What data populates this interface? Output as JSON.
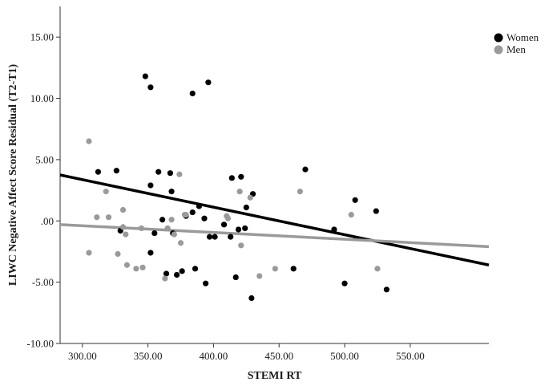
{
  "chart_data": {
    "type": "scatter",
    "xlabel": "STEMI RT",
    "ylabel": "LIWC Negative Affect Score Residual (T2-T1)",
    "xlim": [
      283,
      610
    ],
    "ylim": [
      -10,
      17.5
    ],
    "x_ticks": [
      300,
      350,
      400,
      450,
      500,
      550
    ],
    "x_tick_labels": [
      "300.00",
      "350.00",
      "400.00",
      "450.00",
      "500.00",
      "550.00"
    ],
    "y_ticks": [
      15,
      10,
      5,
      0,
      -5,
      -10
    ],
    "y_tick_labels": [
      "15.00",
      "10.00",
      "5.00",
      ".00",
      "-5.00",
      "-10.00"
    ],
    "grid": false,
    "legend_position": "top-right",
    "series": [
      {
        "name": "Women",
        "color": "#000000",
        "points": [
          [
            312,
            4.0
          ],
          [
            326,
            4.1
          ],
          [
            329,
            -0.8
          ],
          [
            348,
            11.8
          ],
          [
            352,
            10.9
          ],
          [
            352,
            2.9
          ],
          [
            352,
            -2.6
          ],
          [
            355,
            -1.0
          ],
          [
            358,
            4.0
          ],
          [
            361,
            0.1
          ],
          [
            364,
            -4.3
          ],
          [
            367,
            3.9
          ],
          [
            368,
            2.4
          ],
          [
            369,
            -1.0
          ],
          [
            372,
            -4.4
          ],
          [
            376,
            -4.1
          ],
          [
            379,
            0.4
          ],
          [
            384,
            10.4
          ],
          [
            384,
            0.7
          ],
          [
            386,
            -3.9
          ],
          [
            389,
            1.2
          ],
          [
            393,
            0.2
          ],
          [
            394,
            -5.1
          ],
          [
            396,
            11.3
          ],
          [
            397,
            -1.3
          ],
          [
            401,
            -1.3
          ],
          [
            408,
            -0.3
          ],
          [
            413,
            -1.3
          ],
          [
            414,
            3.5
          ],
          [
            417,
            -4.6
          ],
          [
            419,
            -0.7
          ],
          [
            421,
            3.6
          ],
          [
            424,
            -0.6
          ],
          [
            425,
            1.1
          ],
          [
            429,
            -6.3
          ],
          [
            430,
            2.2
          ],
          [
            461,
            -3.9
          ],
          [
            470,
            4.2
          ],
          [
            492,
            -0.7
          ],
          [
            500,
            -5.1
          ],
          [
            508,
            1.7
          ],
          [
            524,
            0.8
          ],
          [
            532,
            -5.6
          ]
        ],
        "fit": {
          "x": [
            283,
            610
          ],
          "y": [
            3.75,
            -3.6
          ]
        }
      },
      {
        "name": "Men",
        "color": "#9a9a9a",
        "points": [
          [
            305,
            6.5
          ],
          [
            305,
            -2.6
          ],
          [
            311,
            0.3
          ],
          [
            318,
            2.4
          ],
          [
            320,
            0.3
          ],
          [
            327,
            -2.7
          ],
          [
            331,
            0.9
          ],
          [
            331,
            -0.5
          ],
          [
            333,
            -1.1
          ],
          [
            334,
            -3.6
          ],
          [
            341,
            -3.9
          ],
          [
            345,
            -0.6
          ],
          [
            346,
            -3.8
          ],
          [
            363,
            -4.7
          ],
          [
            365,
            -0.6
          ],
          [
            368,
            0.1
          ],
          [
            370,
            -1.1
          ],
          [
            374,
            3.8
          ],
          [
            375,
            -1.8
          ],
          [
            378,
            0.5
          ],
          [
            379,
            0.5
          ],
          [
            410,
            0.4
          ],
          [
            411,
            0.2
          ],
          [
            420,
            2.4
          ],
          [
            421,
            -2.0
          ],
          [
            428,
            1.9
          ],
          [
            435,
            -4.5
          ],
          [
            447,
            -3.9
          ],
          [
            466,
            2.4
          ],
          [
            505,
            0.5
          ],
          [
            525,
            -3.9
          ]
        ],
        "fit": {
          "x": [
            283,
            610
          ],
          "y": [
            -0.3,
            -2.1
          ]
        }
      }
    ]
  },
  "legend": {
    "women_label": "Women",
    "men_label": "Men"
  }
}
